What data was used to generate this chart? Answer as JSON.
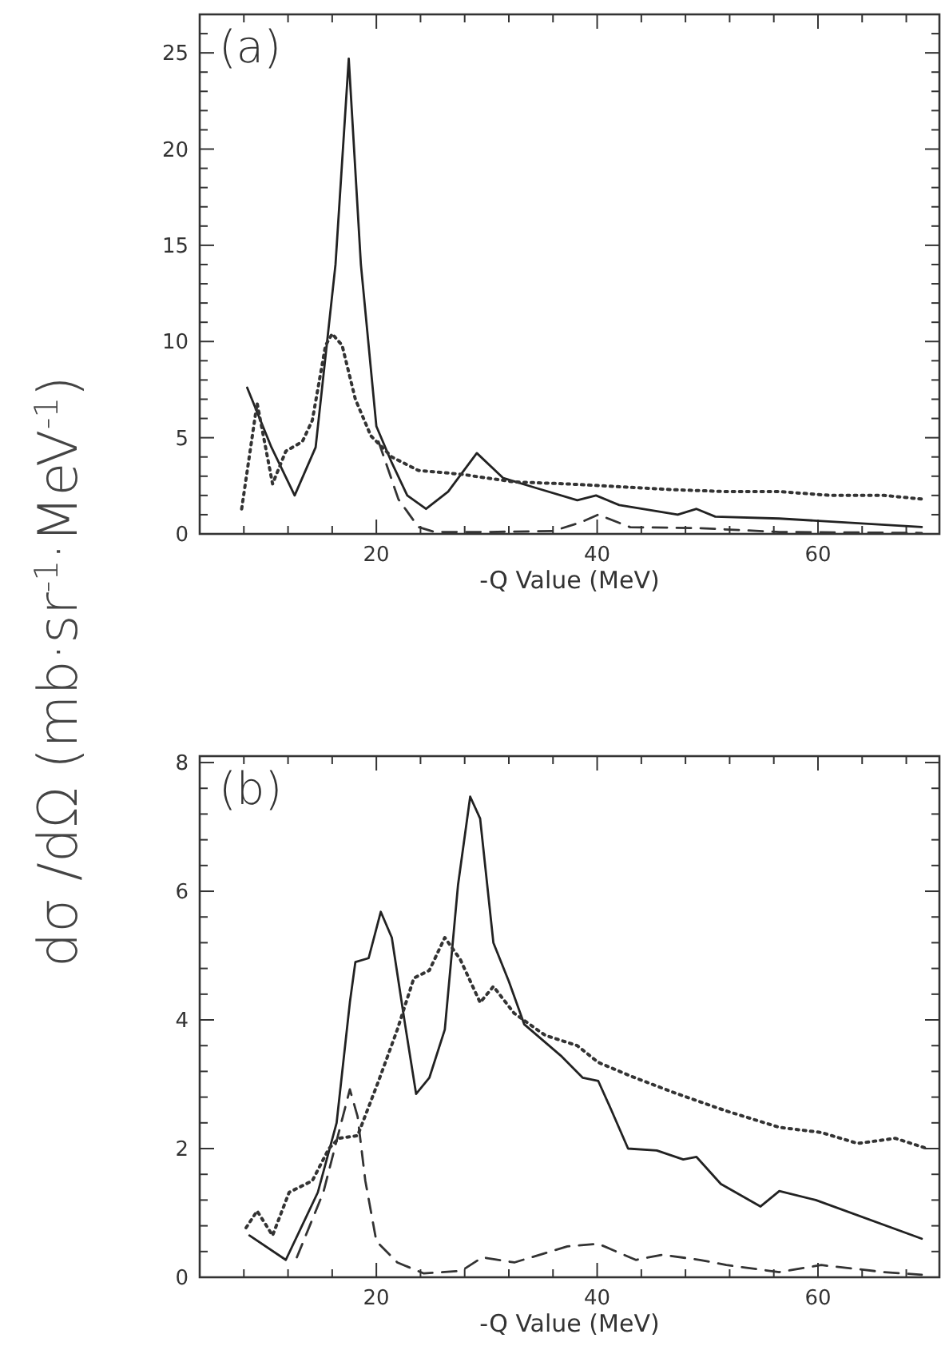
{
  "chart_data": [
    {
      "type": "line",
      "xlabel": "-Q Value (MeV)",
      "ylabel": "dσ /dΩ  (mb·sr$^{-1}$·MeV$^{-1}$)",
      "annotations": [
        "(a)"
      ],
      "xlim": [
        4,
        71
      ],
      "ylim": [
        0,
        27
      ],
      "xticks": [
        {
          "value": 8,
          "label": null
        },
        {
          "value": 12,
          "label": null
        },
        {
          "value": 16,
          "label": null
        },
        20,
        {
          "value": 24,
          "label": null
        },
        {
          "value": 28,
          "label": null
        },
        {
          "value": 32,
          "label": null
        },
        {
          "value": 36,
          "label": null
        },
        40,
        {
          "value": 44,
          "label": null
        },
        {
          "value": 48,
          "label": null
        },
        {
          "value": 52,
          "label": null
        },
        {
          "value": 56,
          "label": null
        },
        60,
        {
          "value": 64,
          "label": null
        },
        {
          "value": 68,
          "label": null
        }
      ],
      "yticks": [
        0,
        {
          "value": 1,
          "label": null
        },
        {
          "value": 2,
          "label": null
        },
        {
          "value": 3,
          "label": null
        },
        {
          "value": 4,
          "label": null
        },
        5,
        {
          "value": 6,
          "label": null
        },
        {
          "value": 7,
          "label": null
        },
        {
          "value": 8,
          "label": null
        },
        {
          "value": 9,
          "label": null
        },
        10,
        {
          "value": 11,
          "label": null
        },
        {
          "value": 12,
          "label": null
        },
        {
          "value": 13,
          "label": null
        },
        {
          "value": 14,
          "label": null
        },
        15,
        {
          "value": 16,
          "label": null
        },
        {
          "value": 17,
          "label": null
        },
        {
          "value": 18,
          "label": null
        },
        {
          "value": 19,
          "label": null
        },
        20,
        {
          "value": 21,
          "label": null
        },
        {
          "value": 22,
          "label": null
        },
        {
          "value": 23,
          "label": null
        },
        {
          "value": 24,
          "label": null
        },
        25,
        {
          "value": 26,
          "label": null
        },
        {
          "value": 27,
          "label": null
        }
      ],
      "series": [
        {
          "color": "#222222",
          "line_style": "solid",
          "x": [
            8.3,
            10.5,
            12.6,
            14.5,
            16.3,
            17.5,
            18.6,
            20,
            21.4,
            22.8,
            24.5,
            26.5,
            29.1,
            31.5,
            34.4,
            38.2,
            39.9,
            42,
            47.3,
            49,
            50.7,
            56.5,
            69.4
          ],
          "values": [
            7.6,
            4.5,
            2.0,
            4.5,
            14,
            24.7,
            14,
            5.6,
            3.7,
            2.0,
            1.3,
            2.2,
            4.2,
            2.9,
            2.4,
            1.75,
            2.0,
            1.5,
            1.0,
            1.3,
            0.9,
            0.8,
            0.36
          ]
        },
        {
          "color": "#333333",
          "line_style": "dotted",
          "x": [
            7.8,
            9.2,
            10.6,
            11.8,
            13.3,
            14.2,
            15.4,
            16,
            16.9,
            18.1,
            19.5,
            21.4,
            23.8,
            27.7,
            32.5,
            37.3,
            42.1,
            46.9,
            51.7,
            56.5,
            61.2,
            66,
            69.6
          ],
          "values": [
            1.3,
            6.8,
            2.6,
            4.3,
            4.8,
            5.9,
            9.8,
            10.4,
            9.8,
            7.0,
            5.1,
            4.0,
            3.3,
            3.1,
            2.7,
            2.6,
            2.45,
            2.3,
            2.2,
            2.2,
            2.0,
            2.0,
            1.8
          ]
        },
        {
          "color": "#333333",
          "line_style": "dashed",
          "x": [
            20.2,
            22,
            23.8,
            25.3,
            30,
            36,
            38.5,
            40.1,
            43,
            49.3,
            56.5,
            69.4
          ],
          "values": [
            4.8,
            1.8,
            0.36,
            0.1,
            0.1,
            0.15,
            0.6,
            1.0,
            0.35,
            0.3,
            0.1,
            0.05
          ]
        }
      ]
    },
    {
      "type": "line",
      "xlabel": "-Q Value (MeV)",
      "annotations": [
        "(b)"
      ],
      "xlim": [
        4,
        71
      ],
      "ylim": [
        0,
        8.1
      ],
      "xticks": [
        {
          "value": 8,
          "label": null
        },
        {
          "value": 12,
          "label": null
        },
        {
          "value": 16,
          "label": null
        },
        20,
        {
          "value": 24,
          "label": null
        },
        {
          "value": 28,
          "label": null
        },
        {
          "value": 32,
          "label": null
        },
        {
          "value": 36,
          "label": null
        },
        40,
        {
          "value": 44,
          "label": null
        },
        {
          "value": 48,
          "label": null
        },
        {
          "value": 52,
          "label": null
        },
        {
          "value": 56,
          "label": null
        },
        60,
        {
          "value": 64,
          "label": null
        },
        {
          "value": 68,
          "label": null
        }
      ],
      "yticks": [
        0,
        {
          "value": 0.4,
          "label": null
        },
        {
          "value": 0.8,
          "label": null
        },
        {
          "value": 1.2,
          "label": null
        },
        {
          "value": 1.6,
          "label": null
        },
        2,
        {
          "value": 2.4,
          "label": null
        },
        {
          "value": 2.8,
          "label": null
        },
        {
          "value": 3.2,
          "label": null
        },
        {
          "value": 3.6,
          "label": null
        },
        4,
        {
          "value": 4.4,
          "label": null
        },
        {
          "value": 4.8,
          "label": null
        },
        {
          "value": 5.2,
          "label": null
        },
        {
          "value": 5.6,
          "label": null
        },
        6,
        {
          "value": 6.4,
          "label": null
        },
        {
          "value": 6.8,
          "label": null
        },
        {
          "value": 7.2,
          "label": null
        },
        {
          "value": 7.6,
          "label": null
        },
        8
      ],
      "series": [
        {
          "color": "#222222",
          "line_style": "solid",
          "x": [
            8.5,
            11.8,
            14.7,
            16.4,
            17.6,
            18.1,
            19.3,
            20.4,
            21.4,
            22.6,
            23.6,
            24.8,
            26.2,
            27.4,
            28.5,
            29.4,
            30.6,
            32,
            33.4,
            36.8,
            38.7,
            40.1,
            41.1,
            42.8,
            45.4,
            47.8,
            49,
            51.2,
            54.8,
            56.5,
            59.8,
            69.4
          ],
          "values": [
            0.65,
            0.27,
            1.32,
            2.4,
            4.27,
            4.9,
            4.96,
            5.68,
            5.28,
            3.93,
            2.85,
            3.1,
            3.85,
            6.1,
            7.47,
            7.13,
            5.2,
            4.6,
            3.93,
            3.43,
            3.1,
            3.05,
            2.67,
            2.0,
            1.97,
            1.83,
            1.87,
            1.45,
            1.1,
            1.34,
            1.2,
            0.6
          ]
        },
        {
          "color": "#333333",
          "line_style": "dotted",
          "x": [
            8.2,
            9.2,
            10.6,
            12.1,
            14.2,
            15.7,
            16.6,
            18.3,
            20.2,
            21.9,
            23.4,
            24.8,
            26.2,
            27.6,
            29.4,
            30.6,
            32.5,
            35.3,
            38.2,
            40.1,
            43,
            46.8,
            51.6,
            56.5,
            60.3,
            63.6,
            67,
            69.9
          ],
          "values": [
            0.77,
            1.03,
            0.65,
            1.32,
            1.5,
            2.0,
            2.16,
            2.2,
            3.05,
            3.85,
            4.65,
            4.77,
            5.28,
            4.94,
            4.27,
            4.52,
            4.1,
            3.76,
            3.6,
            3.34,
            3.13,
            2.88,
            2.59,
            2.33,
            2.25,
            2.08,
            2.16,
            2.0
          ]
        },
        {
          "color": "#333333",
          "line_style": "dashed",
          "x": [
            12.8,
            15.2,
            17.6,
            18.3,
            19,
            20,
            21.9,
            24.3,
            27.7,
            29.6,
            32.5,
            37.3,
            40.1,
            43.5,
            45.9,
            49.3,
            51.7,
            56.5,
            60.3,
            66,
            69.4
          ],
          "values": [
            0.31,
            1.32,
            2.92,
            2.5,
            1.5,
            0.56,
            0.23,
            0.06,
            0.1,
            0.31,
            0.23,
            0.48,
            0.52,
            0.27,
            0.35,
            0.27,
            0.19,
            0.08,
            0.19,
            0.08,
            0.04
          ]
        }
      ]
    }
  ]
}
